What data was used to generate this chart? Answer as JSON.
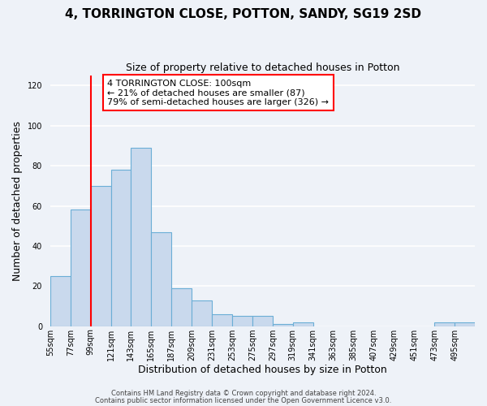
{
  "title": "4, TORRINGTON CLOSE, POTTON, SANDY, SG19 2SD",
  "subtitle": "Size of property relative to detached houses in Potton",
  "xlabel": "Distribution of detached houses by size in Potton",
  "ylabel": "Number of detached properties",
  "bin_labels": [
    "55sqm",
    "77sqm",
    "99sqm",
    "121sqm",
    "143sqm",
    "165sqm",
    "187sqm",
    "209sqm",
    "231sqm",
    "253sqm",
    "275sqm",
    "297sqm",
    "319sqm",
    "341sqm",
    "363sqm",
    "385sqm",
    "407sqm",
    "429sqm",
    "451sqm",
    "473sqm",
    "495sqm"
  ],
  "bin_left_edges": [
    55,
    77,
    99,
    121,
    143,
    165,
    187,
    209,
    231,
    253,
    275,
    297,
    319,
    341,
    363,
    385,
    407,
    429,
    451,
    473,
    495
  ],
  "bin_width": 22,
  "bar_heights": [
    25,
    58,
    70,
    78,
    89,
    47,
    19,
    13,
    6,
    5,
    5,
    1,
    2,
    0,
    0,
    0,
    0,
    0,
    0,
    2,
    2
  ],
  "bar_color": "#c9d9ed",
  "bar_edge_color": "#6baed6",
  "vline_x": 99,
  "vline_color": "red",
  "annotation_text": "4 TORRINGTON CLOSE: 100sqm\n← 21% of detached houses are smaller (87)\n79% of semi-detached houses are larger (326) →",
  "annotation_box_color": "white",
  "annotation_box_edge_color": "red",
  "ylim": [
    0,
    125
  ],
  "yticks": [
    0,
    20,
    40,
    60,
    80,
    100,
    120
  ],
  "footer1": "Contains HM Land Registry data © Crown copyright and database right 2024.",
  "footer2": "Contains public sector information licensed under the Open Government Licence v3.0.",
  "bg_color": "#eef2f8",
  "grid_color": "white",
  "title_fontsize": 11,
  "subtitle_fontsize": 9,
  "axis_label_fontsize": 9,
  "tick_fontsize": 7,
  "annotation_fontsize": 8,
  "footer_fontsize": 6
}
